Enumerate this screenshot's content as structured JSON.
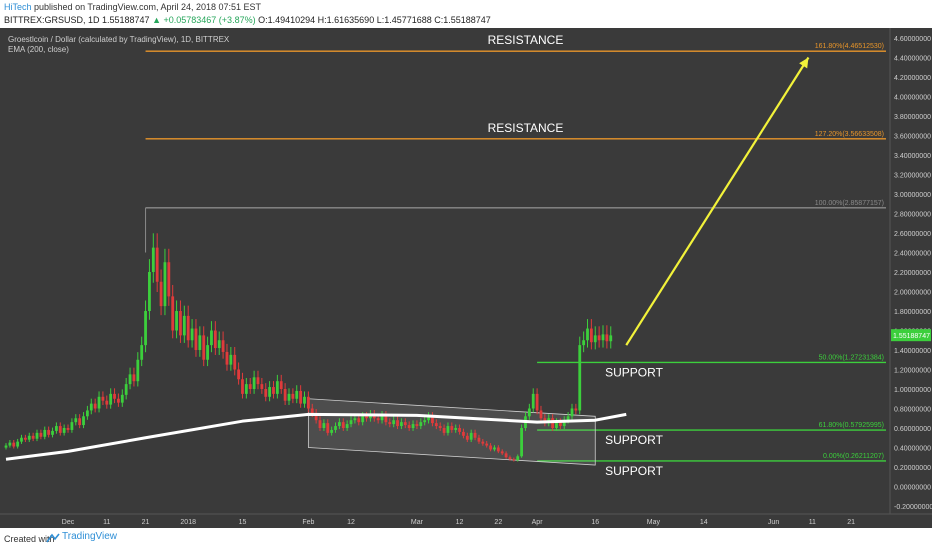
{
  "header": {
    "author": "HiTech",
    "published": "published on TradingView.com, April 24, 2018 07:51 EST",
    "symbol_line": "BITTREX:GRSUSD, 1D 1.55188747",
    "change": "▲ +0.05783467 (+3.87%)",
    "ohlc": "O:1.49410294 H:1.61635690 L:1.45771688 C:1.55188747"
  },
  "legend": {
    "title": "Groestlcoin / Dollar (calculated by TradingView), 1D, BITTREX",
    "indicator": "EMA (200, close)"
  },
  "footer": {
    "created_with": "Created with",
    "brand": "TradingView"
  },
  "colors": {
    "background": "#3a3a3a",
    "up_candle": "#3ccf3c",
    "down_candle": "#e03b3b",
    "support": "#3ccf3c",
    "resistance": "#e8952a",
    "ema": "#ffffff",
    "arrow": "#f2f23a",
    "axis_text": "#cfcfcf",
    "fib_100": "#8a8a8a"
  },
  "chart_data": {
    "type": "candlestick",
    "y_axis": {
      "min": -0.2,
      "max": 4.6,
      "ticks": [
        "4.60000000",
        "4.40000000",
        "4.20000000",
        "4.00000000",
        "3.80000000",
        "3.60000000",
        "3.40000000",
        "3.20000000",
        "3.00000000",
        "2.80000000",
        "2.60000000",
        "2.40000000",
        "2.20000000",
        "2.00000000",
        "1.80000000",
        "1.60000000",
        "1.40000000",
        "1.20000000",
        "1.00000000",
        "0.80000000",
        "0.60000000",
        "0.40000000",
        "0.20000000",
        "0.00000000",
        "-0.20000000"
      ],
      "tick_values": [
        4.6,
        4.4,
        4.2,
        4.0,
        3.8,
        3.6,
        3.4,
        3.2,
        3.0,
        2.8,
        2.6,
        2.4,
        2.2,
        2.0,
        1.8,
        1.6,
        1.4,
        1.2,
        1.0,
        0.8,
        0.6,
        0.4,
        0.2,
        0.0,
        -0.2
      ],
      "last_price": "1.55188747",
      "last_value": 1.55188747
    },
    "x_axis": {
      "start": "2017-11-15",
      "end": "2018-06-30",
      "labels": [
        {
          "label": "Dec",
          "date": "2017-12-01"
        },
        {
          "label": "11",
          "date": "2017-12-11"
        },
        {
          "label": "21",
          "date": "2017-12-21"
        },
        {
          "label": "2018",
          "date": "2018-01-01"
        },
        {
          "label": "15",
          "date": "2018-01-15"
        },
        {
          "label": "Feb",
          "date": "2018-02-01"
        },
        {
          "label": "12",
          "date": "2018-02-12"
        },
        {
          "label": "Mar",
          "date": "2018-03-01"
        },
        {
          "label": "12",
          "date": "2018-03-12"
        },
        {
          "label": "22",
          "date": "2018-03-22"
        },
        {
          "label": "Apr",
          "date": "2018-04-01"
        },
        {
          "label": "16",
          "date": "2018-04-16"
        },
        {
          "label": "May",
          "date": "2018-05-01"
        },
        {
          "label": "14",
          "date": "2018-05-14"
        },
        {
          "label": "Jun",
          "date": "2018-06-01"
        },
        {
          "label": "11",
          "date": "2018-06-11"
        },
        {
          "label": "21",
          "date": "2018-06-21"
        }
      ]
    },
    "first_candle_date": "2017-11-15",
    "closes": [
      0.42,
      0.45,
      0.41,
      0.46,
      0.5,
      0.48,
      0.52,
      0.49,
      0.55,
      0.51,
      0.58,
      0.53,
      0.57,
      0.62,
      0.55,
      0.6,
      0.58,
      0.66,
      0.7,
      0.63,
      0.72,
      0.78,
      0.85,
      0.8,
      0.92,
      0.88,
      0.84,
      0.95,
      0.9,
      0.86,
      0.94,
      1.05,
      1.15,
      1.08,
      1.3,
      1.45,
      1.8,
      2.2,
      2.45,
      2.1,
      1.85,
      2.3,
      1.95,
      1.6,
      1.8,
      1.55,
      1.75,
      1.5,
      1.62,
      1.4,
      1.55,
      1.3,
      1.45,
      1.6,
      1.42,
      1.5,
      1.38,
      1.25,
      1.35,
      1.2,
      1.1,
      0.95,
      1.05,
      1.0,
      1.12,
      1.05,
      1.0,
      0.92,
      1.02,
      0.95,
      1.08,
      1.0,
      0.88,
      0.95,
      0.9,
      0.98,
      0.85,
      0.92,
      0.8,
      0.75,
      0.68,
      0.6,
      0.65,
      0.55,
      0.58,
      0.62,
      0.66,
      0.6,
      0.64,
      0.68,
      0.7,
      0.66,
      0.72,
      0.7,
      0.74,
      0.7,
      0.68,
      0.73,
      0.66,
      0.64,
      0.68,
      0.62,
      0.66,
      0.63,
      0.6,
      0.64,
      0.62,
      0.66,
      0.68,
      0.72,
      0.65,
      0.62,
      0.6,
      0.55,
      0.62,
      0.58,
      0.6,
      0.56,
      0.52,
      0.48,
      0.55,
      0.5,
      0.46,
      0.44,
      0.42,
      0.38,
      0.4,
      0.36,
      0.34,
      0.3,
      0.28,
      0.27,
      0.31,
      0.6,
      0.72,
      0.8,
      0.95,
      0.78,
      0.7,
      0.65,
      0.7,
      0.6,
      0.66,
      0.62,
      0.68,
      0.72,
      0.8,
      0.78,
      1.45,
      1.5,
      1.62,
      1.48,
      1.55,
      1.5,
      1.56,
      1.49,
      1.55
    ],
    "ema_200": [
      {
        "date": "2017-11-15",
        "value": 0.28
      },
      {
        "date": "2017-12-01",
        "value": 0.36
      },
      {
        "date": "2017-12-21",
        "value": 0.5
      },
      {
        "date": "2018-01-15",
        "value": 0.67
      },
      {
        "date": "2018-02-01",
        "value": 0.74
      },
      {
        "date": "2018-03-01",
        "value": 0.73
      },
      {
        "date": "2018-04-01",
        "value": 0.66
      },
      {
        "date": "2018-04-16",
        "value": 0.68
      },
      {
        "date": "2018-04-24",
        "value": 0.74
      }
    ],
    "fib_levels": [
      {
        "label": "161.80%(4.46512530)",
        "value": 4.4651253,
        "color": "#e8952a",
        "annotation": "RESISTANCE"
      },
      {
        "label": "127.20%(3.56633508)",
        "value": 3.56633508,
        "color": "#e8952a",
        "annotation": "RESISTANCE"
      },
      {
        "label": "100.00%(2.85877157)",
        "value": 2.85877157,
        "color": "#8a8a8a",
        "annotation": ""
      },
      {
        "label": "50.00%(1.27231384)",
        "value": 1.27231384,
        "color": "#3ccf3c",
        "annotation": "SUPPORT"
      },
      {
        "label": "61.80%(0.57925995)",
        "value": 0.57925995,
        "color": "#3ccf3c",
        "annotation": "SUPPORT"
      },
      {
        "label": "0.00%(0.26211207)",
        "value": 0.26211207,
        "color": "#3ccf3c",
        "annotation": "SUPPORT"
      }
    ],
    "channel": {
      "upper_start": {
        "date": "2018-02-01",
        "value": 0.9
      },
      "upper_end": {
        "date": "2018-04-16",
        "value": 0.72
      },
      "lower_start": {
        "date": "2018-02-01",
        "value": 0.4
      },
      "lower_end": {
        "date": "2018-04-16",
        "value": 0.22
      }
    },
    "arrow": {
      "from": {
        "date": "2018-04-24",
        "value": 1.45
      },
      "to": {
        "date": "2018-06-10",
        "value": 4.4
      }
    }
  }
}
